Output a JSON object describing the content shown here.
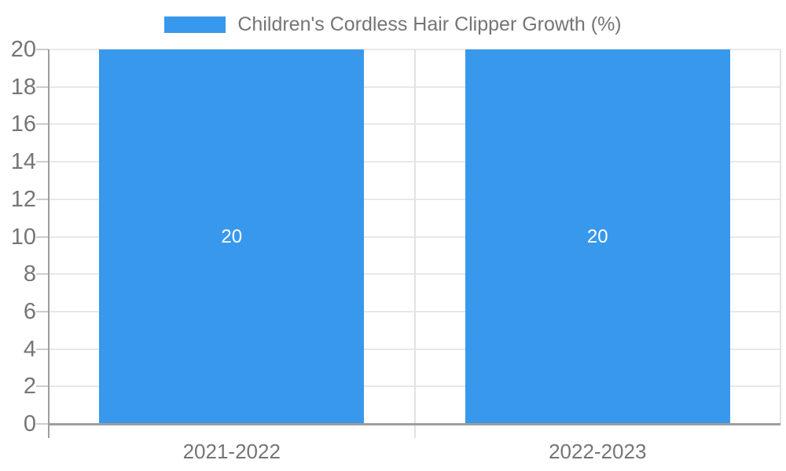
{
  "chart_data": {
    "type": "bar",
    "title": "Children's Cordless Hair Clipper Growth (%)",
    "legend_position": "top",
    "categories": [
      "2021-2022",
      "2022-2023"
    ],
    "series": [
      {
        "name": "Children's Cordless Hair Clipper Growth (%)",
        "values": [
          20,
          20
        ]
      }
    ],
    "bar_value_labels": [
      "20",
      "20"
    ],
    "xlabel": "",
    "ylabel": "",
    "ylim": [
      0,
      20
    ],
    "ytick_step": 2,
    "yticks": [
      0,
      2,
      4,
      6,
      8,
      10,
      12,
      14,
      16,
      18,
      20
    ],
    "grid": true,
    "colors": {
      "bar": "#3898EC",
      "bar_label": "#FFFFFF",
      "axis_text": "#757575",
      "legend_text": "#757575",
      "gridline": "#E8E8E8",
      "divider": "#E2E2E2",
      "axis_line": "#9E9E9E",
      "tick": "#CCCCCC",
      "background": "#FFFFFF"
    }
  }
}
